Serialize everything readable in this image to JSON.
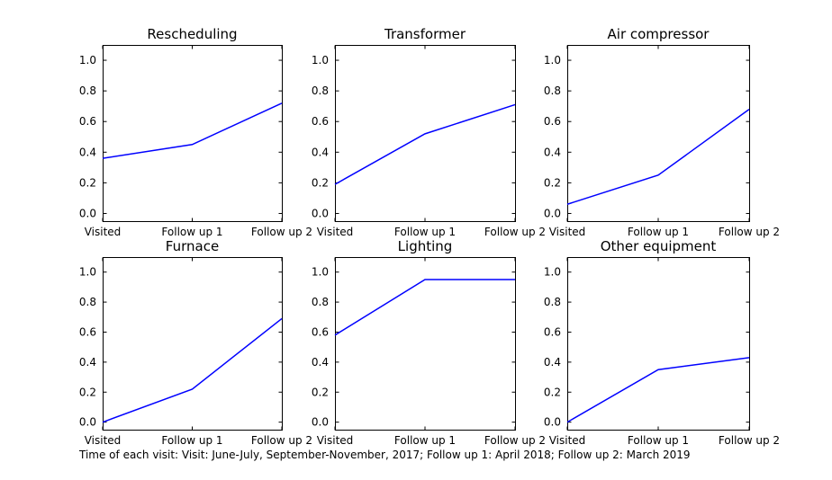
{
  "caption": "Time of each visit: Visit: June-July, September-November, 2017; Follow up 1: April 2018; Follow up 2: March 2019",
  "style": {
    "line_color": "#0000ff",
    "axis_color": "#000000",
    "background_color": "#ffffff"
  },
  "chart_data": {
    "type": "line",
    "categories": [
      "Visited",
      "Follow up 1",
      "Follow up 2"
    ],
    "yticks": [
      "0.0",
      "0.2",
      "0.4",
      "0.6",
      "0.8",
      "1.0"
    ],
    "ylim": [
      -0.05,
      1.1
    ],
    "grid": false,
    "legend": "none",
    "charts": [
      {
        "title": "Rescheduling",
        "values": [
          0.36,
          0.45,
          0.72
        ]
      },
      {
        "title": "Transformer",
        "values": [
          0.19,
          0.52,
          0.71
        ]
      },
      {
        "title": "Air compressor",
        "values": [
          0.06,
          0.25,
          0.68
        ]
      },
      {
        "title": "Furnace",
        "values": [
          0.0,
          0.22,
          0.69
        ]
      },
      {
        "title": "Lighting",
        "values": [
          0.58,
          0.95,
          0.95
        ]
      },
      {
        "title": "Other equipment",
        "values": [
          0.0,
          0.35,
          0.43
        ]
      }
    ]
  }
}
